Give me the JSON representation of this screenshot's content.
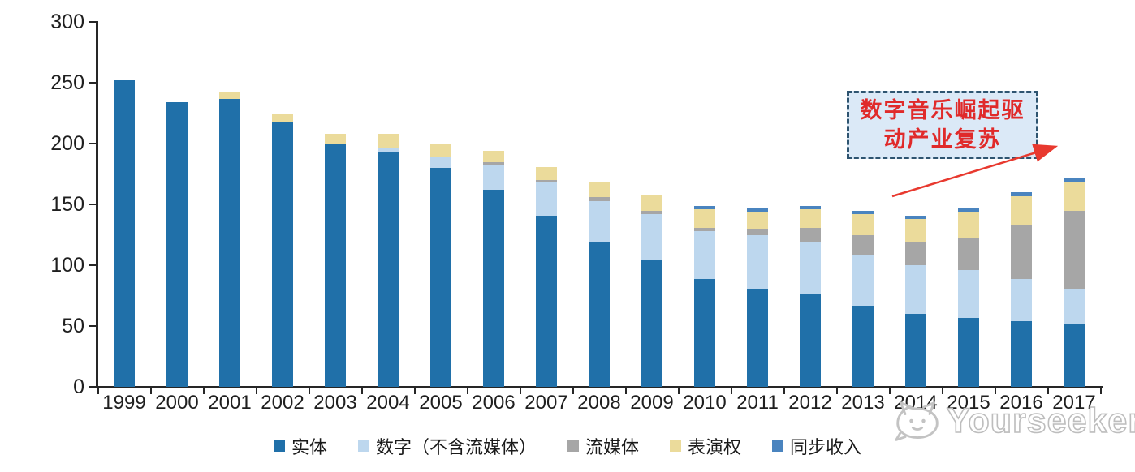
{
  "chart_data": {
    "type": "bar",
    "stacked": true,
    "title": "",
    "xlabel": "",
    "ylabel": "",
    "categories": [
      "1999",
      "2000",
      "2001",
      "2002",
      "2003",
      "2004",
      "2005",
      "2006",
      "2007",
      "2008",
      "2009",
      "2010",
      "2011",
      "2012",
      "2013",
      "2014",
      "2015",
      "2016",
      "2017"
    ],
    "series": [
      {
        "name": "实体",
        "color": "#2070a9",
        "values": [
          252,
          234,
          237,
          218,
          200,
          193,
          180,
          162,
          141,
          119,
          104,
          89,
          81,
          76,
          67,
          60,
          57,
          54,
          52
        ]
      },
      {
        "name": "数字（不含流媒体）",
        "color": "#bdd7ee",
        "values": [
          0,
          0,
          0,
          0,
          0,
          4,
          9,
          21,
          27,
          34,
          38,
          39,
          44,
          43,
          42,
          40,
          39,
          35,
          29
        ]
      },
      {
        "name": "流媒体",
        "color": "#a6a6a6",
        "values": [
          0,
          0,
          0,
          0,
          0,
          0,
          0,
          2,
          2,
          3,
          3,
          3,
          5,
          12,
          16,
          19,
          27,
          44,
          64
        ]
      },
      {
        "name": "表演权",
        "color": "#ebdb9b",
        "values": [
          0,
          0,
          6,
          7,
          8,
          11,
          11,
          9,
          11,
          13,
          13,
          15,
          14,
          15,
          17,
          19,
          21,
          24,
          24
        ]
      },
      {
        "name": "同步收入",
        "color": "#4a84bf",
        "values": [
          0,
          0,
          0,
          0,
          0,
          0,
          0,
          0,
          0,
          0,
          0,
          3,
          3,
          3,
          3,
          3,
          3,
          3,
          3
        ]
      }
    ],
    "ylim": [
      0,
      300
    ],
    "yticks": [
      0,
      50,
      100,
      150,
      200,
      250,
      300
    ],
    "grid": false,
    "legend_position": "bottom"
  },
  "annotation": {
    "line1": "数字音乐崛起驱",
    "line2": "动产业复苏",
    "text_color": "#e02a2a",
    "box_fill": "#dbe9f7",
    "box_border": "#2e5470",
    "arrow_color": "#e8392f"
  },
  "watermark": {
    "text": "Yourseeker"
  }
}
